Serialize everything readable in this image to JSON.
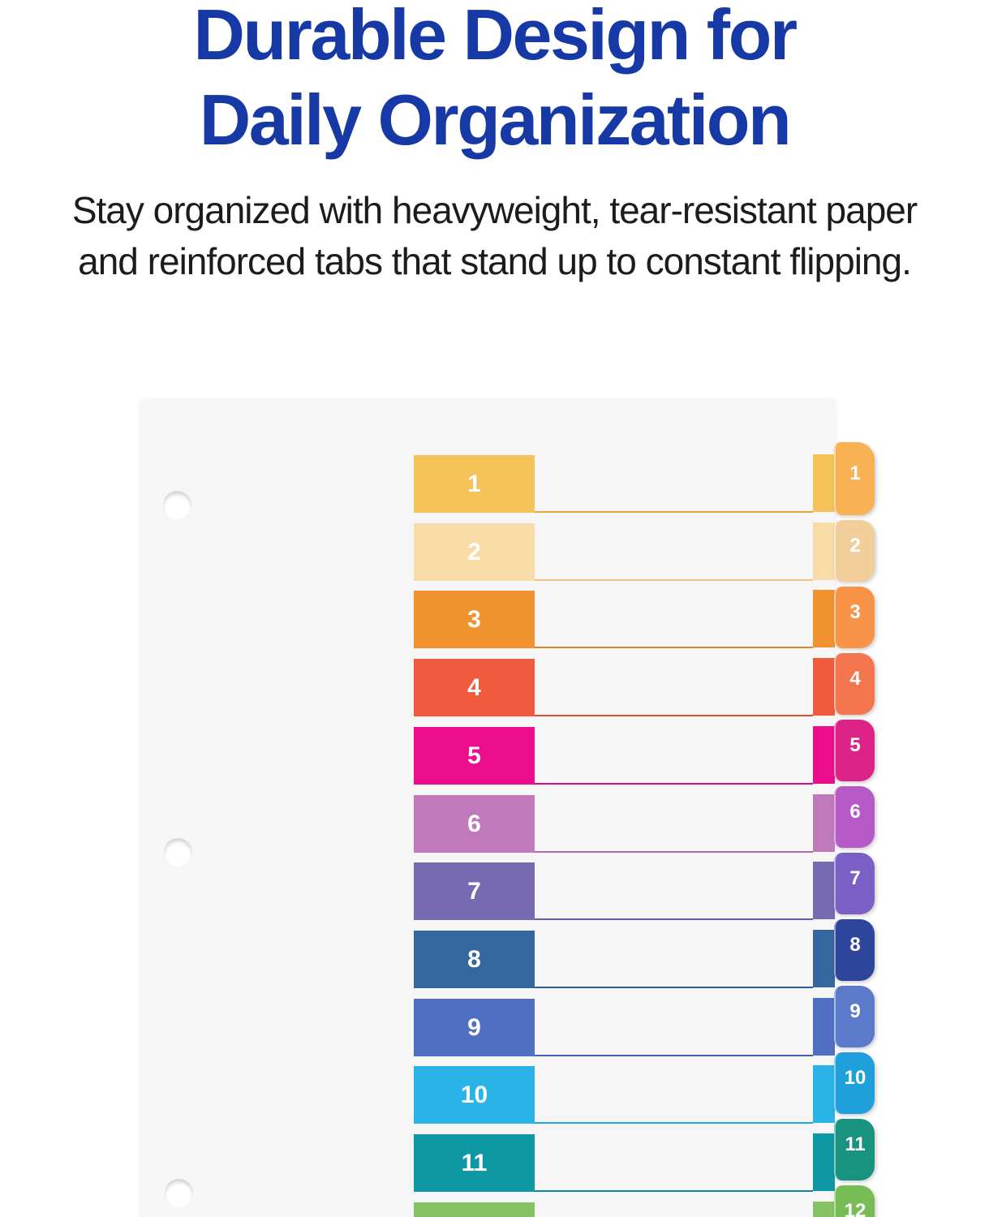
{
  "header": {
    "title_line1": "Durable Design for",
    "title_line2": "Daily Organization",
    "title_color": "#1739A6",
    "subtitle_line1": "Stay organized with heavyweight, tear-resistant paper",
    "subtitle_line2": "and reinforced tabs that stand up to constant flipping.",
    "subtitle_color": "#1C1C1E"
  },
  "product": {
    "description": "Three-hole-punched table of contents divider sheet with 12 multicolor numbered rows and matching edge tabs",
    "paper_color": "#F6F6F7",
    "hole_count": 3,
    "rows": [
      {
        "num": "1",
        "block_color": "#F6C35A",
        "line_color": "#E3A43C",
        "tab_color": "#F8B254"
      },
      {
        "num": "2",
        "block_color": "#F8DCA8",
        "line_color": "#ECC57F",
        "tab_color": "#F1CE9A"
      },
      {
        "num": "3",
        "block_color": "#F0922F",
        "line_color": "#DD8426",
        "tab_color": "#F89347"
      },
      {
        "num": "4",
        "block_color": "#F05B3D",
        "line_color": "#DE4E33",
        "tab_color": "#F4764E"
      },
      {
        "num": "5",
        "block_color": "#EB0D8C",
        "line_color": "#D60C80",
        "tab_color": "#DD2387"
      },
      {
        "num": "6",
        "block_color": "#C07ABB",
        "line_color": "#B16CAC",
        "tab_color": "#B55AC6"
      },
      {
        "num": "7",
        "block_color": "#7769B2",
        "line_color": "#6A5CA5",
        "tab_color": "#7A60C4"
      },
      {
        "num": "8",
        "block_color": "#33679E",
        "line_color": "#2B5B91",
        "tab_color": "#2E459C"
      },
      {
        "num": "9",
        "block_color": "#4F70C0",
        "line_color": "#4464B3",
        "tab_color": "#5C7ACA"
      },
      {
        "num": "10",
        "block_color": "#29B3E7",
        "line_color": "#1FA5D9",
        "tab_color": "#20A0DB"
      },
      {
        "num": "11",
        "block_color": "#0E98A4",
        "line_color": "#0C8A96",
        "tab_color": "#17937F"
      },
      {
        "num": "12",
        "block_color": "#85C263",
        "line_color": "#76B355",
        "tab_color": "#77BC54"
      }
    ]
  }
}
